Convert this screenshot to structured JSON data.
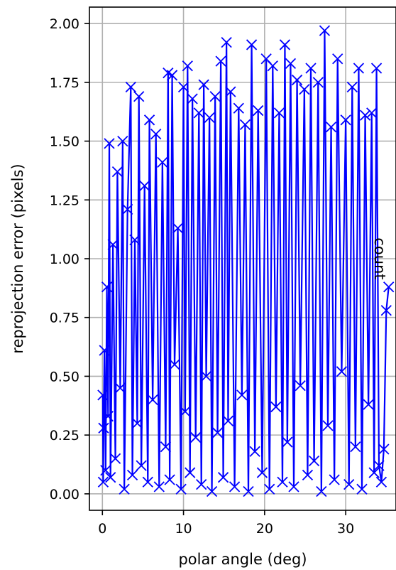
{
  "chart_data": {
    "type": "line",
    "title": "",
    "xlabel": "polar angle (deg)",
    "ylabel": "reprojection error (pixels)",
    "side_label": "count",
    "xlim": [
      -1.6,
      36.2
    ],
    "ylim": [
      -0.07,
      2.07
    ],
    "xticks": [
      0,
      10,
      20,
      30
    ],
    "yticks": [
      0.0,
      0.25,
      0.5,
      0.75,
      1.0,
      1.25,
      1.5,
      1.75,
      2.0
    ],
    "xtick_labels": [
      "0",
      "10",
      "20",
      "30"
    ],
    "ytick_labels": [
      "0.00",
      "0.25",
      "0.50",
      "0.75",
      "1.00",
      "1.25",
      "1.50",
      "1.75",
      "2.00"
    ],
    "grid": true,
    "series": [
      {
        "color": "#0000ff",
        "marker": "x",
        "x": [
          0.05,
          0.1,
          0.15,
          0.25,
          0.4,
          0.55,
          0.7,
          0.85,
          1.0,
          1.3,
          1.6,
          1.85,
          2.2,
          2.5,
          2.7,
          3.1,
          3.5,
          3.7,
          4.0,
          4.3,
          4.5,
          4.8,
          5.2,
          5.6,
          5.8,
          6.2,
          6.6,
          7.0,
          7.4,
          7.8,
          8.1,
          8.3,
          8.6,
          8.9,
          9.3,
          9.7,
          10.0,
          10.2,
          10.5,
          10.8,
          11.1,
          11.5,
          11.9,
          12.2,
          12.5,
          12.8,
          13.2,
          13.5,
          13.9,
          14.2,
          14.6,
          14.9,
          15.3,
          15.5,
          15.8,
          16.3,
          16.8,
          17.2,
          17.6,
          18.0,
          18.4,
          18.8,
          19.2,
          19.7,
          20.2,
          20.6,
          21.0,
          21.4,
          21.8,
          22.2,
          22.5,
          22.8,
          23.2,
          23.6,
          24.0,
          24.4,
          24.9,
          25.3,
          25.7,
          26.1,
          26.6,
          27.0,
          27.4,
          27.8,
          28.2,
          28.6,
          29.0,
          29.5,
          30.0,
          30.4,
          30.8,
          31.2,
          31.6,
          32.0,
          32.4,
          32.8,
          33.2,
          33.5,
          33.8,
          34.1,
          34.4,
          34.7,
          35.0,
          35.3
        ],
        "y": [
          0.42,
          0.05,
          0.28,
          0.61,
          0.1,
          0.88,
          0.33,
          1.49,
          0.07,
          1.06,
          0.15,
          1.37,
          0.45,
          1.5,
          0.02,
          1.21,
          1.73,
          0.08,
          1.08,
          0.3,
          1.69,
          0.12,
          1.31,
          0.05,
          1.59,
          0.4,
          1.53,
          0.03,
          1.41,
          0.2,
          1.79,
          0.06,
          1.78,
          0.55,
          1.13,
          0.02,
          1.73,
          0.35,
          1.82,
          0.09,
          1.68,
          0.24,
          1.62,
          0.04,
          1.74,
          0.5,
          1.6,
          0.01,
          1.69,
          0.26,
          1.84,
          0.07,
          1.92,
          0.31,
          1.71,
          0.03,
          1.64,
          0.42,
          1.57,
          0.01,
          1.91,
          0.18,
          1.63,
          0.09,
          1.85,
          0.02,
          1.82,
          0.37,
          1.62,
          0.05,
          1.91,
          0.22,
          1.83,
          0.03,
          1.76,
          0.46,
          1.72,
          0.08,
          1.81,
          0.14,
          1.75,
          0.01,
          1.97,
          0.29,
          1.56,
          0.06,
          1.85,
          0.52,
          1.59,
          0.04,
          1.73,
          0.2,
          1.81,
          0.02,
          1.61,
          0.38,
          1.62,
          0.09,
          1.81,
          0.12,
          0.05,
          0.19,
          0.78,
          0.88
        ]
      }
    ]
  }
}
